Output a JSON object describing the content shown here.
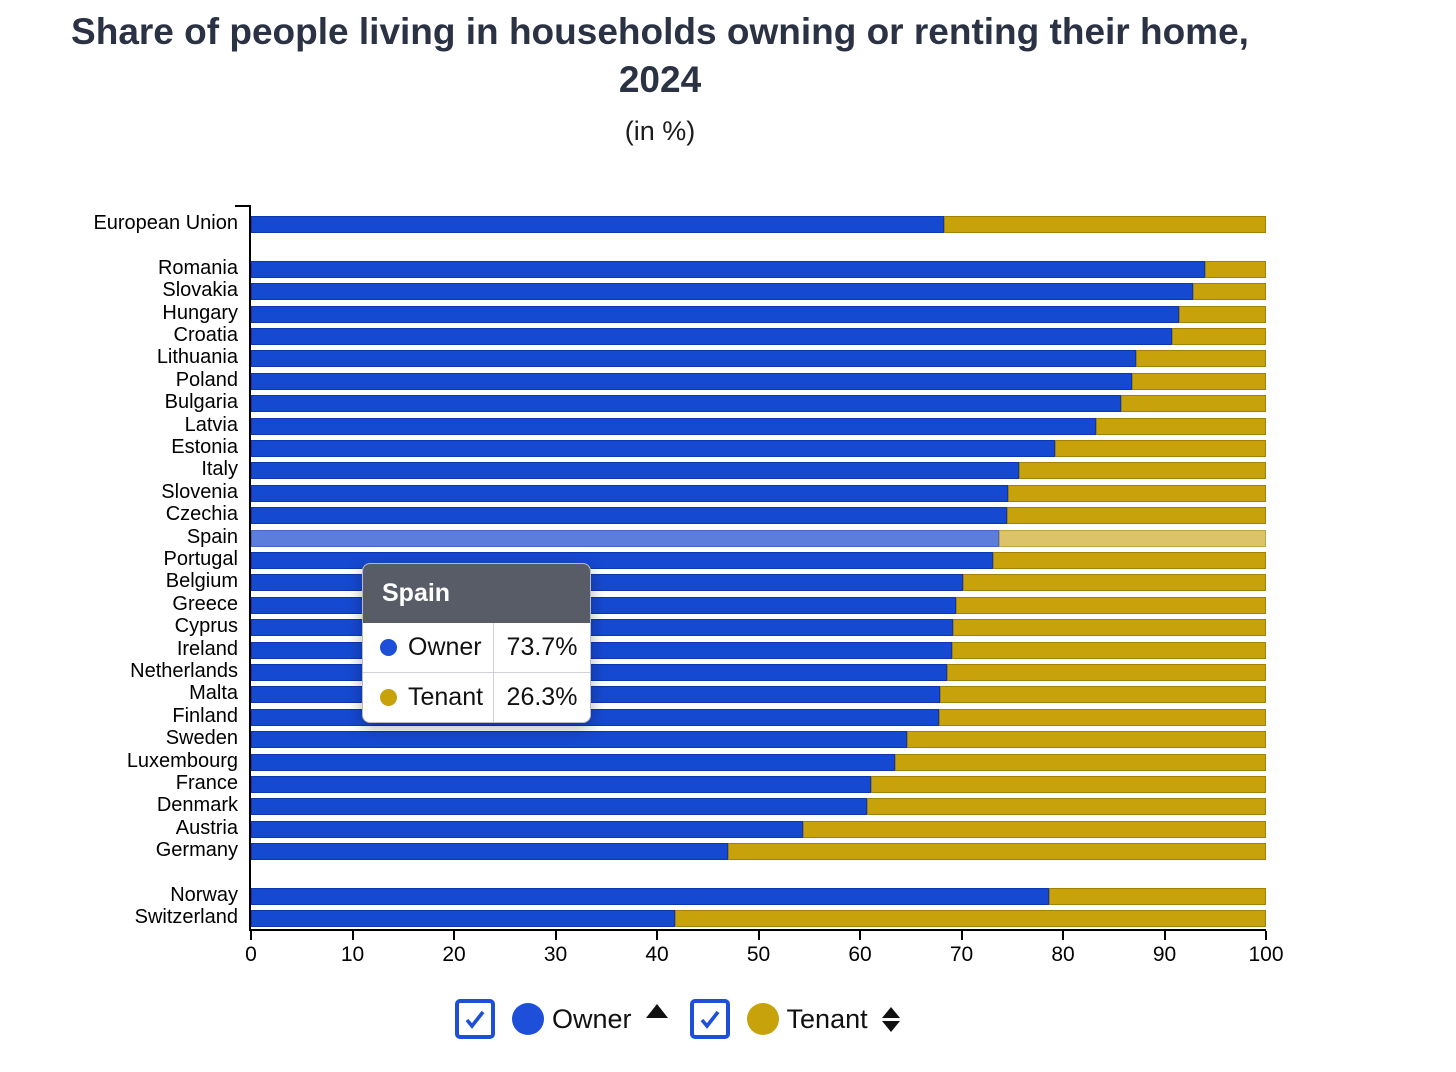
{
  "chart_data": {
    "type": "bar",
    "stacked": true,
    "orientation": "horizontal",
    "title": "Share of people living in households owning or renting their home, 2024",
    "subtitle": "(in %)",
    "xlabel": "",
    "ylabel": "",
    "xlim": [
      0,
      100
    ],
    "x_ticks": [
      0,
      10,
      20,
      30,
      40,
      50,
      60,
      70,
      80,
      90,
      100
    ],
    "grid": false,
    "legend_position": "bottom",
    "categories": [
      "European Union",
      "Romania",
      "Slovakia",
      "Hungary",
      "Croatia",
      "Lithuania",
      "Poland",
      "Bulgaria",
      "Latvia",
      "Estonia",
      "Italy",
      "Slovenia",
      "Czechia",
      "Spain",
      "Portugal",
      "Belgium",
      "Greece",
      "Cyprus",
      "Ireland",
      "Netherlands",
      "Malta",
      "Finland",
      "Sweden",
      "Luxembourg",
      "France",
      "Denmark",
      "Austria",
      "Germany",
      "Norway",
      "Switzerland"
    ],
    "row_groups": [
      "eu-aggregate",
      "member",
      "member",
      "member",
      "member",
      "member",
      "member",
      "member",
      "member",
      "member",
      "member",
      "member",
      "member",
      "member",
      "member",
      "member",
      "member",
      "member",
      "member",
      "member",
      "member",
      "member",
      "member",
      "member",
      "member",
      "member",
      "member",
      "member",
      "non-eu",
      "non-eu"
    ],
    "series": [
      {
        "name": "Owner",
        "color": "#1649d2",
        "values": [
          68.3,
          94.0,
          92.8,
          91.4,
          90.7,
          87.2,
          86.8,
          85.7,
          83.3,
          79.2,
          75.7,
          74.6,
          74.5,
          73.7,
          73.1,
          70.1,
          69.5,
          69.2,
          69.1,
          68.6,
          67.9,
          67.8,
          64.6,
          63.4,
          61.1,
          60.7,
          54.4,
          47.0,
          78.6,
          41.8
        ]
      },
      {
        "name": "Tenant",
        "color": "#c7a20a",
        "values": [
          31.7,
          6.0,
          7.2,
          8.6,
          9.3,
          12.8,
          13.2,
          14.3,
          16.7,
          20.8,
          24.3,
          25.4,
          25.5,
          26.3,
          26.9,
          29.9,
          30.5,
          30.8,
          30.9,
          31.4,
          32.1,
          32.2,
          35.4,
          36.6,
          38.9,
          39.3,
          45.6,
          53.0,
          21.4,
          58.2
        ]
      }
    ],
    "highlight": {
      "category": "Spain",
      "owner_color": "#5b7edb",
      "tenant_color": "#dcc268"
    }
  },
  "tooltip": {
    "title": "Spain",
    "rows": [
      {
        "label": "Owner",
        "value": "73.7%",
        "color": "#1d4fd8"
      },
      {
        "label": "Tenant",
        "value": "26.3%",
        "color": "#c7a20a"
      }
    ]
  },
  "legend": {
    "items": [
      {
        "label": "Owner",
        "checked": true,
        "color": "#1d4fd8",
        "sort": "ascending"
      },
      {
        "label": "Tenant",
        "checked": true,
        "color": "#c7a20a",
        "sort": "both"
      }
    ]
  },
  "colors": {
    "accent_blue": "#1649d2",
    "accent_gold": "#c7a20a",
    "tooltip_header": "#575c66",
    "title_text": "#2b3244"
  }
}
